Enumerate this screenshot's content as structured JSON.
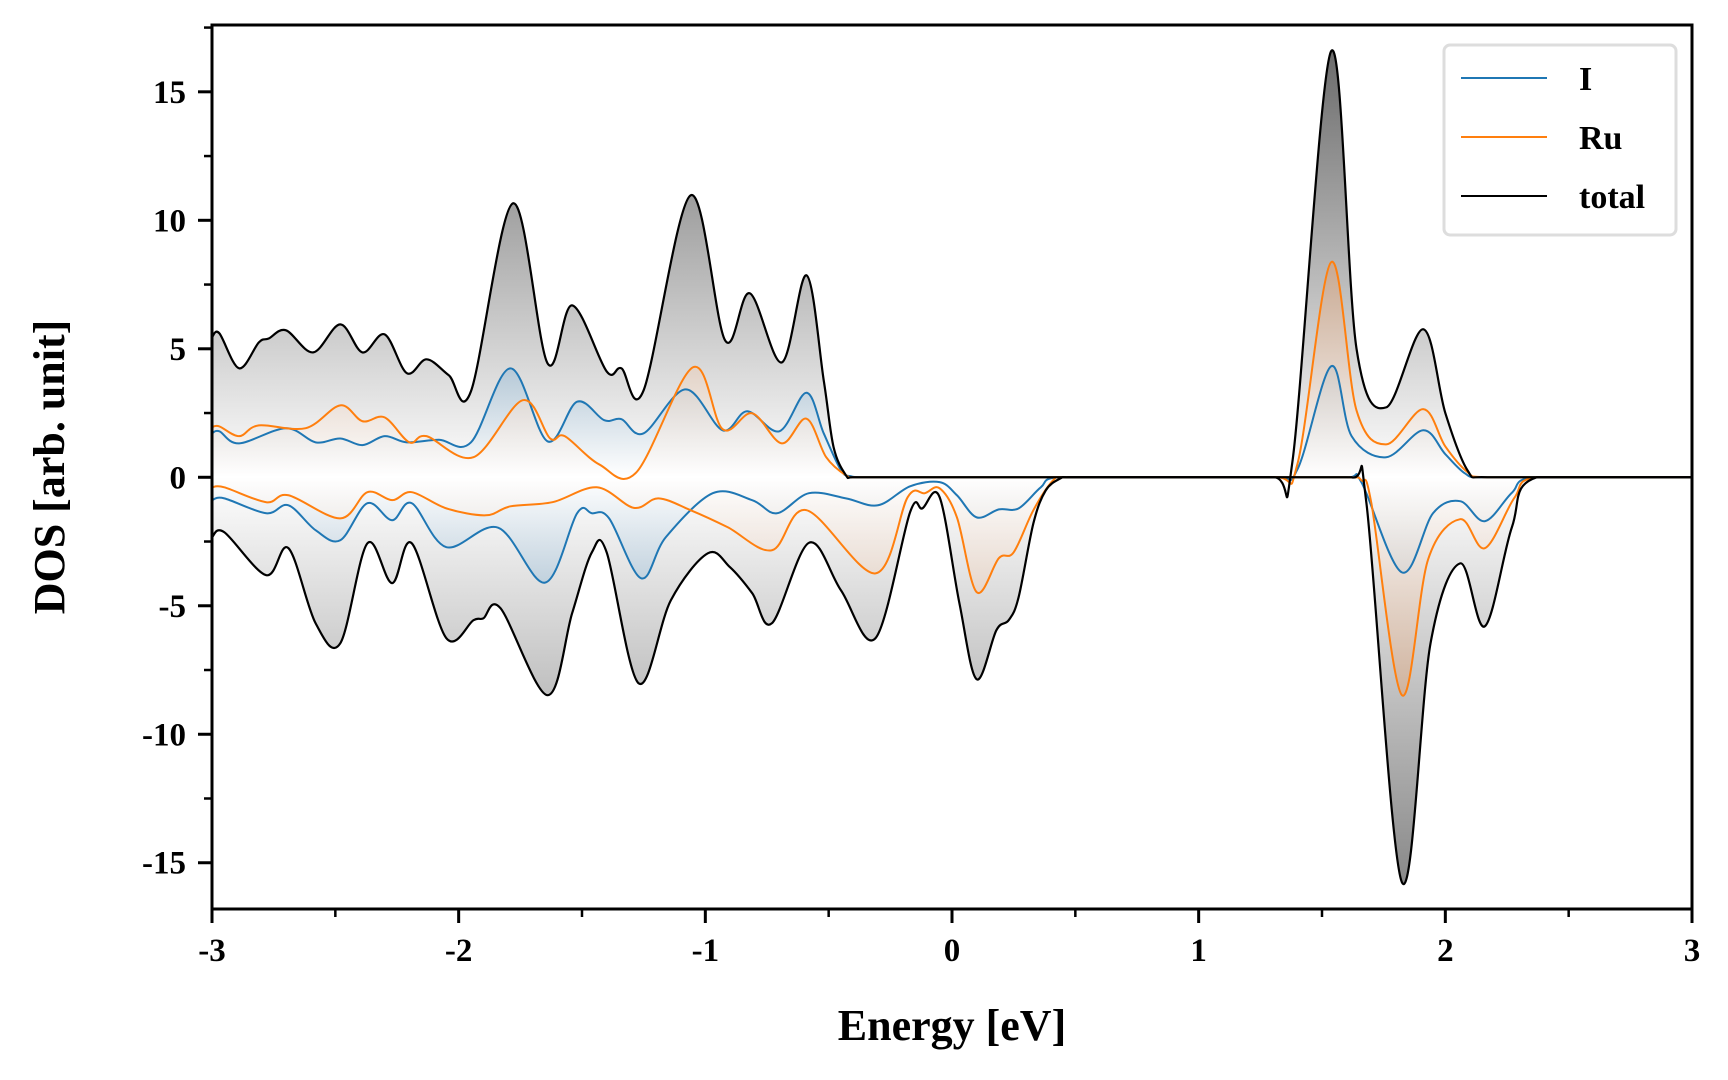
{
  "chart_data": {
    "type": "line",
    "title": "",
    "xlabel": "Energy [eV]",
    "ylabel": "DOS [arb. unit]",
    "xlim": [
      -3,
      3
    ],
    "ylim": [
      -16.8,
      17.6
    ],
    "xticks": [
      -3,
      -2,
      -1,
      0,
      1,
      2,
      3
    ],
    "xtick_labels": [
      "-3",
      "-2",
      "-1",
      "0",
      "1",
      "2",
      "3"
    ],
    "yticks": [
      -15,
      -10,
      -5,
      0,
      5,
      10,
      15
    ],
    "ytick_labels": [
      "-15",
      "-10",
      "-5",
      "0",
      "5",
      "10",
      "15"
    ],
    "x_minor_step": 0.5,
    "y_minor_step": 2.5,
    "grid": false,
    "legend_position": "top-right",
    "fill_gradient_to_zero": true,
    "series": [
      {
        "name": "I",
        "color": "#1f77b4",
        "fill_color": "#3d7fb0",
        "up": [
          [
            -3.0,
            1.71
          ],
          [
            -2.97,
            1.79
          ],
          [
            -2.89,
            1.32
          ],
          [
            -2.7,
            1.91
          ],
          [
            -2.58,
            1.36
          ],
          [
            -2.48,
            1.51
          ],
          [
            -2.39,
            1.25
          ],
          [
            -2.3,
            1.6
          ],
          [
            -2.21,
            1.36
          ],
          [
            -2.08,
            1.46
          ],
          [
            -1.95,
            1.36
          ],
          [
            -1.79,
            4.24
          ],
          [
            -1.64,
            1.4
          ],
          [
            -1.52,
            2.94
          ],
          [
            -1.41,
            2.22
          ],
          [
            -1.34,
            2.26
          ],
          [
            -1.25,
            1.71
          ],
          [
            -1.08,
            3.42
          ],
          [
            -0.93,
            1.83
          ],
          [
            -0.83,
            2.57
          ],
          [
            -0.7,
            1.79
          ],
          [
            -0.59,
            3.29
          ],
          [
            -0.52,
            1.71
          ],
          [
            -0.45,
            0.27
          ],
          [
            -0.41,
            0.04
          ],
          [
            -0.35,
            0.0
          ],
          [
            1.3,
            0.0
          ],
          [
            1.4,
            0.3
          ],
          [
            1.537,
            4.32
          ],
          [
            1.62,
            1.6
          ],
          [
            1.76,
            0.78
          ],
          [
            1.91,
            1.83
          ],
          [
            2.0,
            0.9
          ],
          [
            2.08,
            0.15
          ],
          [
            2.15,
            0.0
          ],
          [
            3.0,
            0.0
          ]
        ],
        "down": [
          [
            -3.0,
            -0.89
          ],
          [
            -2.95,
            -0.82
          ],
          [
            -2.78,
            -1.4
          ],
          [
            -2.69,
            -1.09
          ],
          [
            -2.58,
            -2.06
          ],
          [
            -2.48,
            -2.45
          ],
          [
            -2.37,
            -1.01
          ],
          [
            -2.27,
            -1.67
          ],
          [
            -2.19,
            -1.01
          ],
          [
            -2.05,
            -2.72
          ],
          [
            -1.84,
            -1.96
          ],
          [
            -1.65,
            -4.1
          ],
          [
            -1.52,
            -1.4
          ],
          [
            -1.46,
            -1.4
          ],
          [
            -1.39,
            -1.6
          ],
          [
            -1.26,
            -3.93
          ],
          [
            -1.16,
            -2.33
          ],
          [
            -0.97,
            -0.62
          ],
          [
            -0.81,
            -0.89
          ],
          [
            -0.71,
            -1.4
          ],
          [
            -0.58,
            -0.62
          ],
          [
            -0.43,
            -0.82
          ],
          [
            -0.3,
            -1.09
          ],
          [
            -0.17,
            -0.35
          ],
          [
            -0.05,
            -0.19
          ],
          [
            0.02,
            -0.7
          ],
          [
            0.1,
            -1.56
          ],
          [
            0.19,
            -1.25
          ],
          [
            0.27,
            -1.21
          ],
          [
            0.36,
            -0.39
          ],
          [
            0.43,
            0.0
          ],
          [
            1.6,
            0.0
          ],
          [
            1.66,
            -0.2
          ],
          [
            1.824,
            -3.7
          ],
          [
            1.95,
            -1.4
          ],
          [
            2.06,
            -0.93
          ],
          [
            2.16,
            -1.71
          ],
          [
            2.27,
            -0.6
          ],
          [
            2.36,
            0.0
          ],
          [
            3.0,
            0.0
          ]
        ]
      },
      {
        "name": "Ru",
        "color": "#ff7f0e",
        "fill_color": "#d9a27a",
        "up": [
          [
            -3.0,
            1.95
          ],
          [
            -2.97,
            1.98
          ],
          [
            -2.89,
            1.6
          ],
          [
            -2.81,
            2.02
          ],
          [
            -2.62,
            1.91
          ],
          [
            -2.48,
            2.8
          ],
          [
            -2.39,
            2.18
          ],
          [
            -2.3,
            2.33
          ],
          [
            -2.2,
            1.36
          ],
          [
            -2.13,
            1.6
          ],
          [
            -1.94,
            0.78
          ],
          [
            -1.74,
            3.0
          ],
          [
            -1.63,
            1.52
          ],
          [
            -1.57,
            1.6
          ],
          [
            -1.43,
            0.5
          ],
          [
            -1.28,
            0.19
          ],
          [
            -1.05,
            4.28
          ],
          [
            -0.93,
            1.87
          ],
          [
            -0.81,
            2.49
          ],
          [
            -0.69,
            1.32
          ],
          [
            -0.59,
            2.28
          ],
          [
            -0.51,
            0.78
          ],
          [
            -0.43,
            0.08
          ],
          [
            -0.38,
            0.0
          ],
          [
            1.3,
            0.0
          ],
          [
            1.4,
            0.5
          ],
          [
            1.537,
            8.37
          ],
          [
            1.64,
            2.6
          ],
          [
            1.76,
            1.28
          ],
          [
            1.91,
            2.65
          ],
          [
            2.0,
            1.2
          ],
          [
            2.09,
            0.2
          ],
          [
            2.16,
            0.0
          ],
          [
            3.0,
            0.0
          ]
        ],
        "down": [
          [
            -3.0,
            -0.39
          ],
          [
            -2.95,
            -0.39
          ],
          [
            -2.78,
            -0.97
          ],
          [
            -2.69,
            -0.7
          ],
          [
            -2.48,
            -1.6
          ],
          [
            -2.37,
            -0.58
          ],
          [
            -2.27,
            -0.89
          ],
          [
            -2.19,
            -0.58
          ],
          [
            -2.05,
            -1.21
          ],
          [
            -1.89,
            -1.48
          ],
          [
            -1.79,
            -1.13
          ],
          [
            -1.62,
            -0.97
          ],
          [
            -1.44,
            -0.39
          ],
          [
            -1.29,
            -1.19
          ],
          [
            -1.19,
            -0.82
          ],
          [
            -1.06,
            -1.28
          ],
          [
            -0.91,
            -1.94
          ],
          [
            -0.73,
            -2.84
          ],
          [
            -0.59,
            -1.28
          ],
          [
            -0.31,
            -3.74
          ],
          [
            -0.18,
            -0.78
          ],
          [
            -0.11,
            -0.62
          ],
          [
            -0.05,
            -0.43
          ],
          [
            0.02,
            -1.56
          ],
          [
            0.1,
            -4.47
          ],
          [
            0.19,
            -3.15
          ],
          [
            0.25,
            -2.92
          ],
          [
            0.33,
            -1.28
          ],
          [
            0.41,
            -0.12
          ],
          [
            0.46,
            0.0
          ],
          [
            1.6,
            0.0
          ],
          [
            1.66,
            -0.12
          ],
          [
            1.7,
            -1.0
          ],
          [
            1.824,
            -8.48
          ],
          [
            1.93,
            -3.2
          ],
          [
            2.06,
            -1.63
          ],
          [
            2.16,
            -2.76
          ],
          [
            2.28,
            -0.8
          ],
          [
            2.37,
            0.0
          ],
          [
            3.0,
            0.0
          ]
        ]
      },
      {
        "name": "total",
        "color": "#000000",
        "fill_color": "#6e6e6e",
        "up": [
          [
            -3.0,
            5.45
          ],
          [
            -2.97,
            5.6
          ],
          [
            -2.89,
            4.24
          ],
          [
            -2.81,
            5.25
          ],
          [
            -2.77,
            5.4
          ],
          [
            -2.7,
            5.72
          ],
          [
            -2.59,
            4.86
          ],
          [
            -2.48,
            5.95
          ],
          [
            -2.39,
            4.86
          ],
          [
            -2.3,
            5.56
          ],
          [
            -2.21,
            4.05
          ],
          [
            -2.13,
            4.59
          ],
          [
            -2.04,
            3.97
          ],
          [
            -1.95,
            3.35
          ],
          [
            -1.78,
            10.66
          ],
          [
            -1.64,
            4.44
          ],
          [
            -1.54,
            6.69
          ],
          [
            -1.4,
            4.12
          ],
          [
            -1.34,
            4.24
          ],
          [
            -1.25,
            3.39
          ],
          [
            -1.06,
            10.97
          ],
          [
            -0.92,
            5.33
          ],
          [
            -0.82,
            7.16
          ],
          [
            -0.69,
            4.47
          ],
          [
            -0.59,
            7.86
          ],
          [
            -0.52,
            3.77
          ],
          [
            -0.48,
            1.17
          ],
          [
            -0.43,
            0.08
          ],
          [
            -0.4,
            0.0
          ],
          [
            1.3,
            0.0
          ],
          [
            1.38,
            0.6
          ],
          [
            1.537,
            16.58
          ],
          [
            1.64,
            5.0
          ],
          [
            1.76,
            2.72
          ],
          [
            1.91,
            5.76
          ],
          [
            2.0,
            2.5
          ],
          [
            2.09,
            0.27
          ],
          [
            2.17,
            0.0
          ],
          [
            3.0,
            0.0
          ]
        ],
        "down": [
          [
            -3.0,
            -2.33
          ],
          [
            -2.95,
            -2.14
          ],
          [
            -2.78,
            -3.81
          ],
          [
            -2.69,
            -2.76
          ],
          [
            -2.58,
            -5.68
          ],
          [
            -2.48,
            -6.46
          ],
          [
            -2.37,
            -2.57
          ],
          [
            -2.27,
            -4.12
          ],
          [
            -2.19,
            -2.57
          ],
          [
            -2.05,
            -6.26
          ],
          [
            -1.94,
            -5.56
          ],
          [
            -1.9,
            -5.49
          ],
          [
            -1.83,
            -5.1
          ],
          [
            -1.64,
            -8.48
          ],
          [
            -1.54,
            -5.29
          ],
          [
            -1.46,
            -2.92
          ],
          [
            -1.4,
            -2.92
          ],
          [
            -1.27,
            -8.02
          ],
          [
            -1.14,
            -4.79
          ],
          [
            -0.99,
            -2.96
          ],
          [
            -0.9,
            -3.5
          ],
          [
            -0.81,
            -4.51
          ],
          [
            -0.73,
            -5.68
          ],
          [
            -0.58,
            -2.55
          ],
          [
            -0.45,
            -4.4
          ],
          [
            -0.31,
            -6.26
          ],
          [
            -0.17,
            -1.36
          ],
          [
            -0.12,
            -1.21
          ],
          [
            -0.05,
            -0.78
          ],
          [
            0.03,
            -4.9
          ],
          [
            0.1,
            -7.86
          ],
          [
            0.18,
            -5.95
          ],
          [
            0.23,
            -5.56
          ],
          [
            0.27,
            -4.67
          ],
          [
            0.33,
            -1.79
          ],
          [
            0.38,
            -0.51
          ],
          [
            0.44,
            -0.04
          ],
          [
            0.47,
            0.0
          ],
          [
            1.62,
            0.0
          ],
          [
            1.68,
            -1.0
          ],
          [
            1.824,
            -15.76
          ],
          [
            1.94,
            -6.46
          ],
          [
            2.06,
            -3.35
          ],
          [
            2.16,
            -5.8
          ],
          [
            2.27,
            -1.94
          ],
          [
            2.37,
            0.0
          ],
          [
            3.0,
            0.0
          ]
        ]
      }
    ]
  }
}
